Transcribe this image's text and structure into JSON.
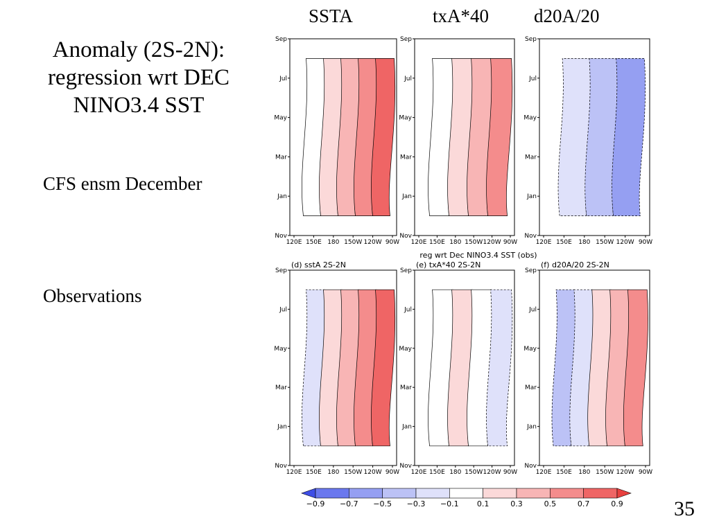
{
  "slide": {
    "title": "Anomaly (2S-2N): regression wrt DEC NINO3.4 SST",
    "row_labels": [
      "CFS ensm December",
      "Observations"
    ],
    "column_headers": [
      "SSTA",
      "txA*40",
      "d20A/20"
    ],
    "slide_number": "35"
  },
  "chart_data": {
    "type": "heatmap",
    "figure_title": "reg wrt Dec NINO3.4 SST (obs)",
    "x_ticks": [
      "120E",
      "150E",
      "180",
      "150W",
      "120W",
      "90W"
    ],
    "y_ticks": [
      "Sep",
      "Jul",
      "May",
      "Mar",
      "Jan",
      "Nov"
    ],
    "colorbar": {
      "levels": [
        -0.9,
        -0.7,
        -0.5,
        -0.3,
        -0.1,
        0.1,
        0.3,
        0.5,
        0.7,
        0.9
      ],
      "labels": [
        "-0.9",
        "-0.7",
        "-0.5",
        "-0.3",
        "-0.1",
        "0.1",
        "0.3",
        "0.5",
        "0.7",
        "0.9"
      ],
      "colors": [
        "#3e4ee6",
        "#6a78ee",
        "#959ff2",
        "#bcc2f6",
        "#dfe1fa",
        "#ffffff",
        "#fbd9d9",
        "#f8b5b5",
        "#f48c8c",
        "#ef6565",
        "#e8403f"
      ]
    },
    "panels": [
      {
        "id": "a",
        "title": "",
        "variable": "SSTA"
      },
      {
        "id": "b",
        "title": "",
        "variable": "txA*40"
      },
      {
        "id": "c",
        "title": "",
        "variable": "d20A/20"
      },
      {
        "id": "d",
        "title": "(d)  sstA 2S-2N",
        "variable": "SSTA"
      },
      {
        "id": "e",
        "title": "(e) txA*40 2S-2N",
        "variable": "txA*40"
      },
      {
        "id": "f",
        "title": "(f) d20A/20 2S-2N",
        "variable": "d20A/20"
      }
    ]
  }
}
